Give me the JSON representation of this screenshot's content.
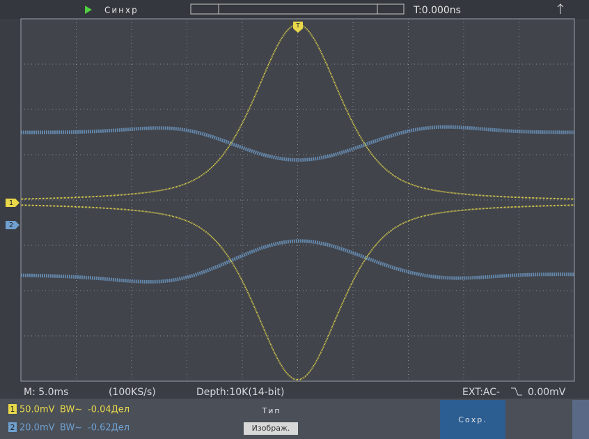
{
  "top_bar": {
    "trigger_label": "Синхр",
    "time_offset": "T:0.000ns"
  },
  "markers": {
    "trigger": "T",
    "ch1": "1",
    "ch2": "2"
  },
  "status": {
    "timebase": "M: 5.0ms",
    "sample_rate": "(100KS/s)",
    "depth": "Depth:10K(14-bit)",
    "trigger_coupling": "EXT:AC-",
    "trigger_level": "0.00mV"
  },
  "channels": [
    {
      "number": "1",
      "scale": "50.0mV",
      "bandwidth": "BW~",
      "offset": "-0.04Дел"
    },
    {
      "number": "2",
      "scale": "20.0mV",
      "bandwidth": "BW~",
      "offset": "-0.62Дел"
    }
  ],
  "menu": {
    "label": "Тип",
    "value": "Изображ.",
    "save": "Сохр."
  }
}
